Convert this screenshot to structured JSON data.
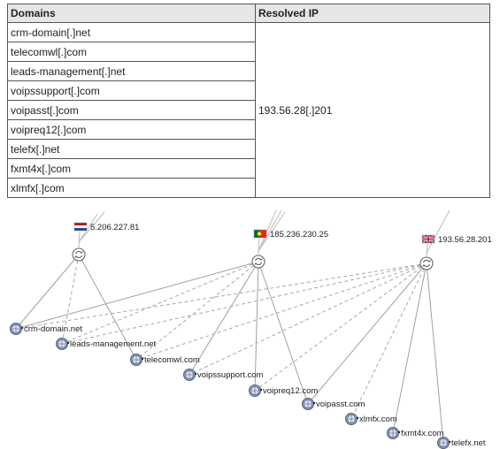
{
  "table": {
    "headers": [
      "Domains",
      "Resolved IP"
    ],
    "domains": [
      "crm-domain[.]net",
      "telecomwl[.]com",
      "leads-management[.]net",
      "voipssupport[.]com",
      "voipasst[.]com",
      "voipreq12[.]com",
      "telefx[.]net",
      "fxmt4x[.]com",
      "xlmfx[.]com"
    ],
    "resolved_ip": "193.56.28[.]201"
  },
  "graph": {
    "ips": [
      {
        "label": "5.206.227.81",
        "flag": "netherlands-flag"
      },
      {
        "label": "185.236.230.25",
        "flag": "portugal-flag"
      },
      {
        "label": "193.56.28.201",
        "flag": "uk-flag"
      }
    ],
    "domains": [
      {
        "label": "crm-domain.net"
      },
      {
        "label": "leads-management.net"
      },
      {
        "label": "telecomwl.com"
      },
      {
        "label": "voipssupport.com"
      },
      {
        "label": "voipreq12.com"
      },
      {
        "label": "voipasst.com"
      },
      {
        "label": "xlmfx.com"
      },
      {
        "label": "fxmt4x.com"
      },
      {
        "label": "telefx.net"
      }
    ]
  }
}
